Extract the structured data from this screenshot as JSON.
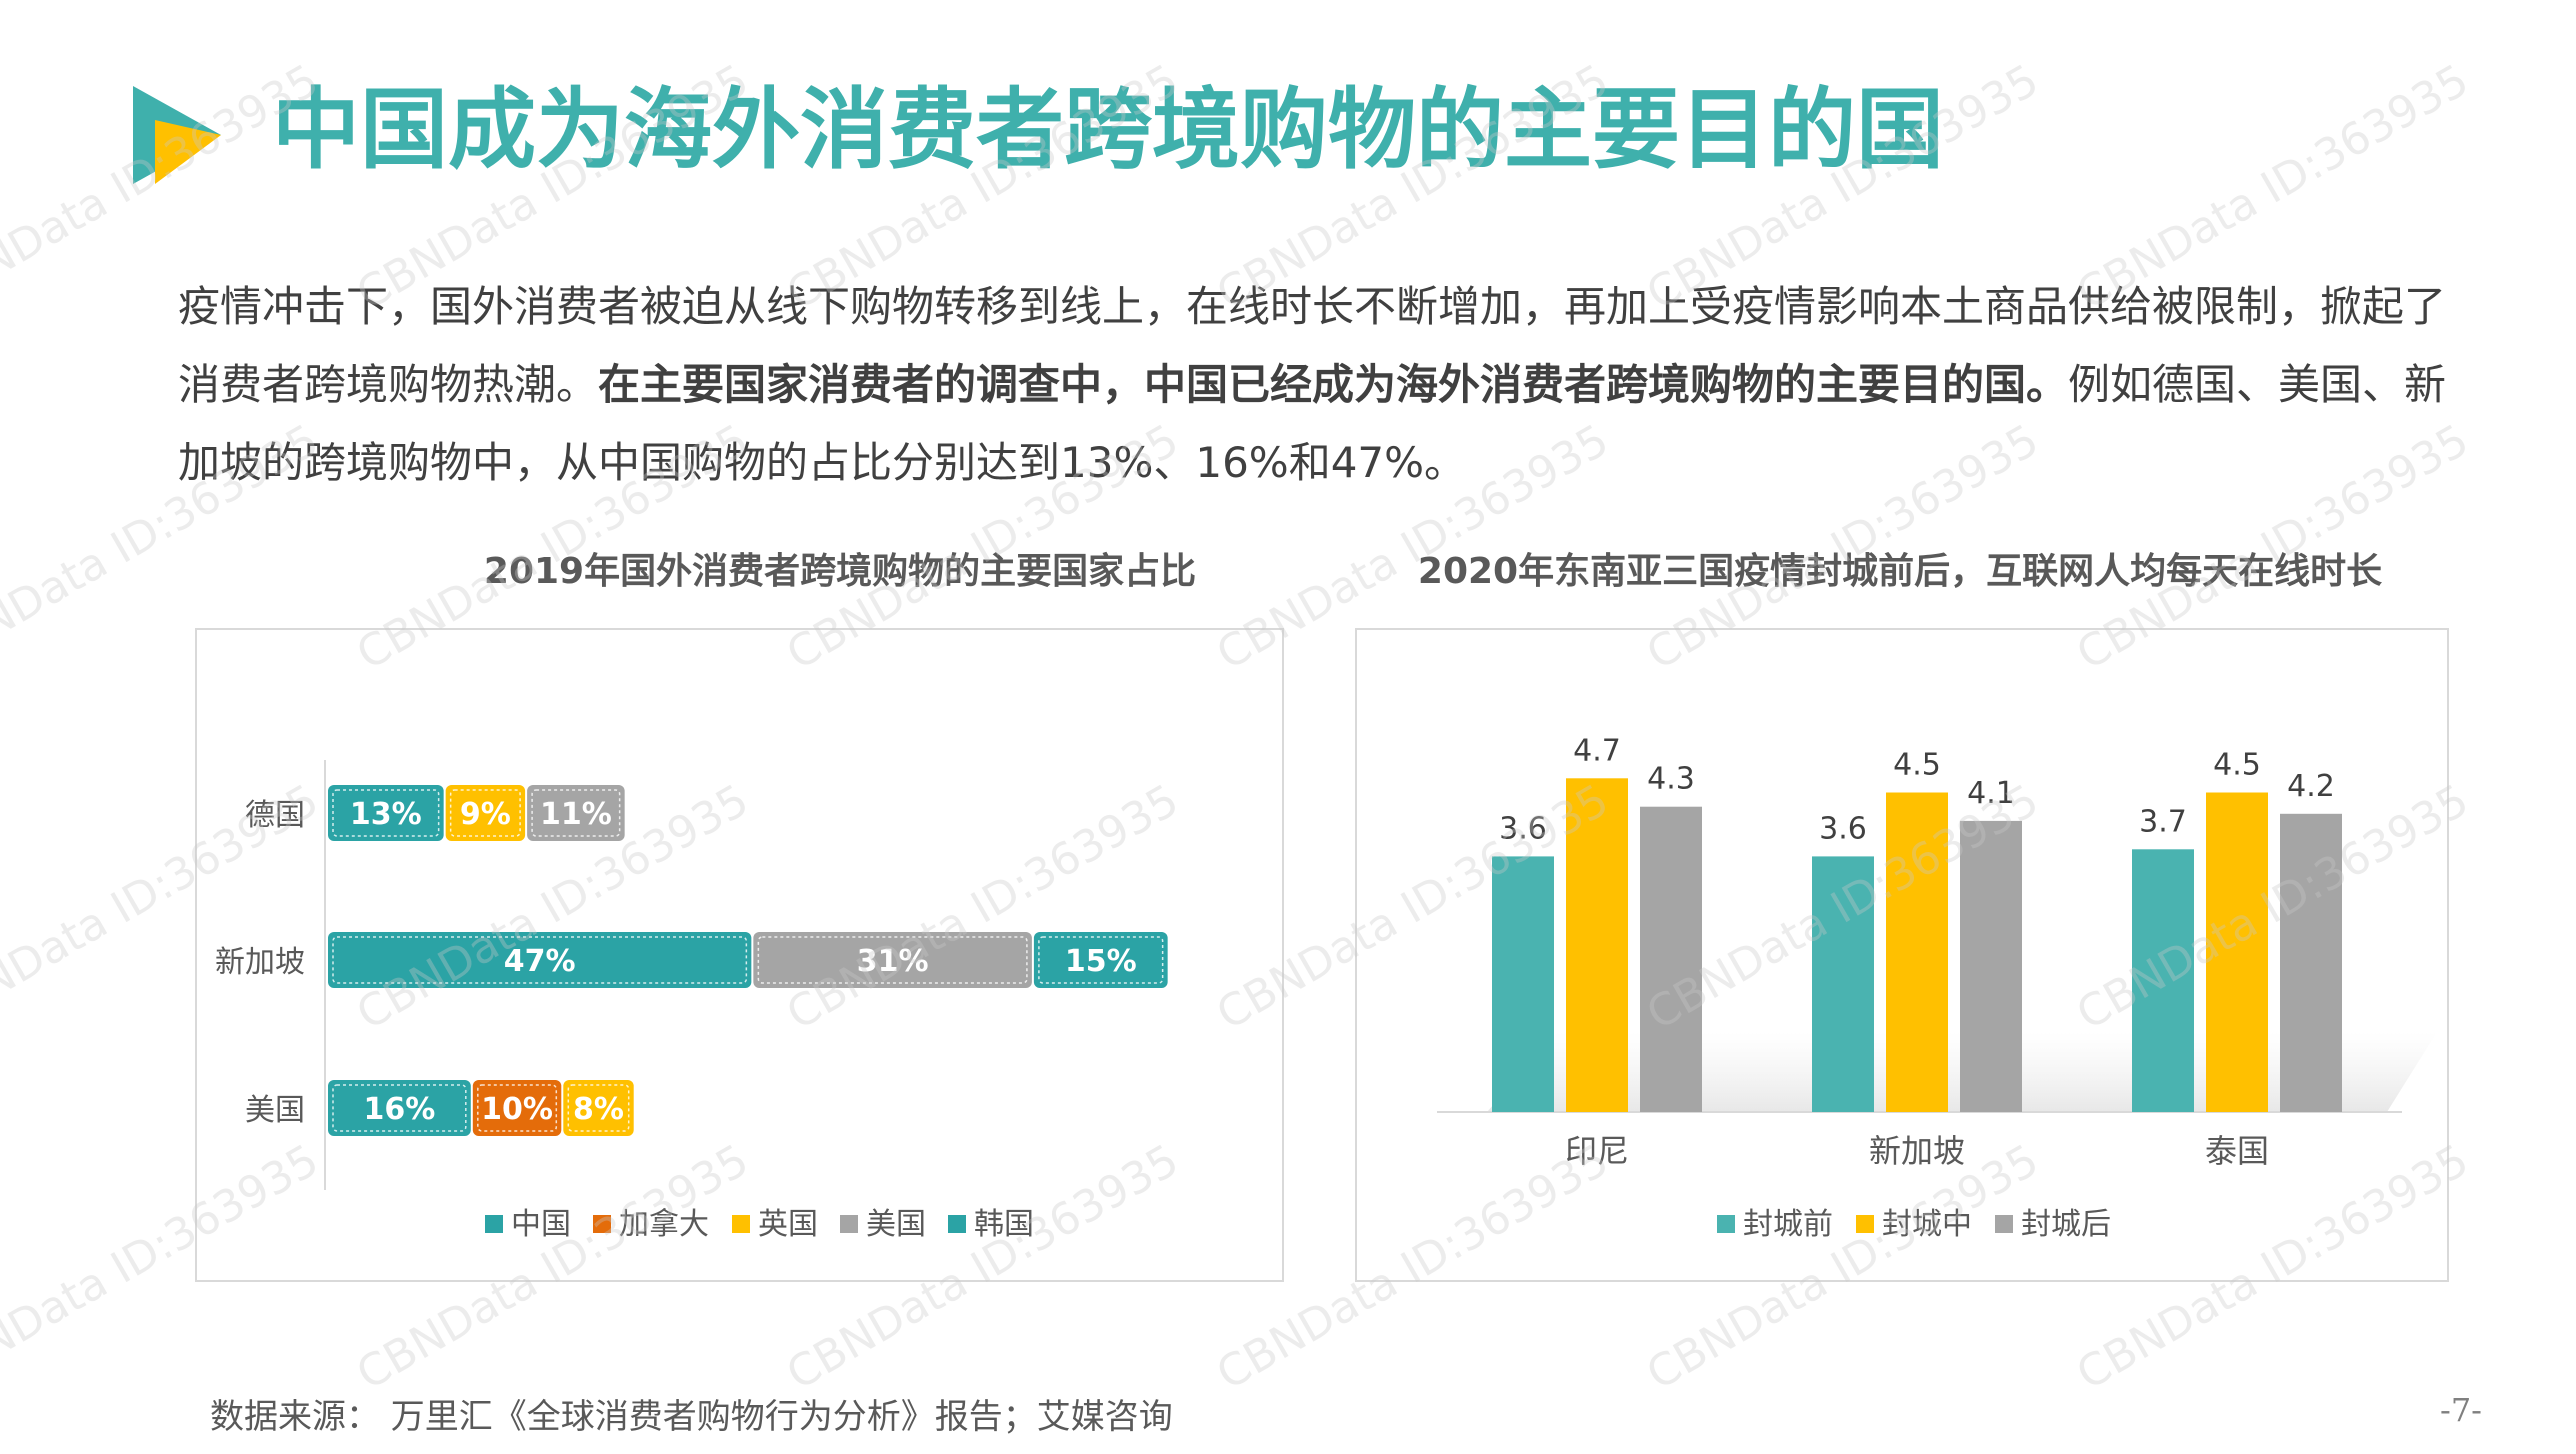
{
  "header": {
    "title": "中国成为海外消费者跨境购物的主要目的国"
  },
  "intro": {
    "part1": "疫情冲击下，国外消费者被迫从线下购物转移到线上，在线时长不断增加，再加上受疫情影响本土商品供给被限制，掀起了消费者跨境购物热潮。",
    "bold": "在主要国家消费者的调查中，中国已经成为海外消费者跨境购物的主要目的国。",
    "part2": "例如德国、美国、新加坡的跨境购物中，从中国购物的占比分别达到13%、16%和47%。"
  },
  "watermark": {
    "text": "CBNData ID:363935"
  },
  "colors": {
    "teal": "#2ba3a5",
    "bar_teal": "#4ab3b0",
    "orange": "#e46c0a",
    "yellow": "#ffc000",
    "gray": "#a5a5a5",
    "title_teal": "#3fb0ac"
  },
  "chart_data": [
    {
      "type": "bar",
      "orientation": "horizontal",
      "stacked": true,
      "title": "2019年国外消费者跨境购物的主要国家占比",
      "categories": [
        "德国",
        "新加坡",
        "美国"
      ],
      "legend": [
        "中国",
        "加拿大",
        "英国",
        "美国",
        "韩国"
      ],
      "legend_colors": [
        "#2ba3a5",
        "#e46c0a",
        "#ffc000",
        "#a5a5a5",
        "#2ba3a5"
      ],
      "rows": [
        {
          "category": "德国",
          "segments": [
            {
              "series": "中国",
              "value": 13,
              "label": "13%",
              "color": "#2ba3a5"
            },
            {
              "series": "英国",
              "value": 9,
              "label": "9%",
              "color": "#ffc000"
            },
            {
              "series": "美国",
              "value": 11,
              "label": "11%",
              "color": "#a5a5a5"
            }
          ]
        },
        {
          "category": "新加坡",
          "segments": [
            {
              "series": "中国",
              "value": 47,
              "label": "47%",
              "color": "#2ba3a5"
            },
            {
              "series": "美国",
              "value": 31,
              "label": "31%",
              "color": "#a5a5a5"
            },
            {
              "series": "韩国",
              "value": 15,
              "label": "15%",
              "color": "#2ba3a5"
            }
          ]
        },
        {
          "category": "美国",
          "segments": [
            {
              "series": "中国",
              "value": 16,
              "label": "16%",
              "color": "#2ba3a5"
            },
            {
              "series": "加拿大",
              "value": 10,
              "label": "10%",
              "color": "#e46c0a"
            },
            {
              "series": "英国",
              "value": 8,
              "label": "8%",
              "color": "#ffc000"
            }
          ]
        }
      ],
      "legend_position": "bottom"
    },
    {
      "type": "bar",
      "title": "2020年东南亚三国疫情封城前后，互联网人均每天在线时长",
      "categories": [
        "印尼",
        "新加坡",
        "泰国"
      ],
      "series": [
        {
          "name": "封城前",
          "color": "#4ab3b0",
          "values": [
            3.6,
            3.6,
            3.7
          ]
        },
        {
          "name": "封城中",
          "color": "#ffc000",
          "values": [
            4.7,
            4.5,
            4.5
          ]
        },
        {
          "name": "封城后",
          "color": "#a5a5a5",
          "values": [
            4.3,
            4.1,
            4.2
          ]
        }
      ],
      "ylim": [
        0,
        5
      ],
      "legend_position": "bottom"
    }
  ],
  "footer": {
    "source": "数据来源： 万里汇《全球消费者购物行为分析》报告；艾媒咨询",
    "page": "-7-"
  }
}
